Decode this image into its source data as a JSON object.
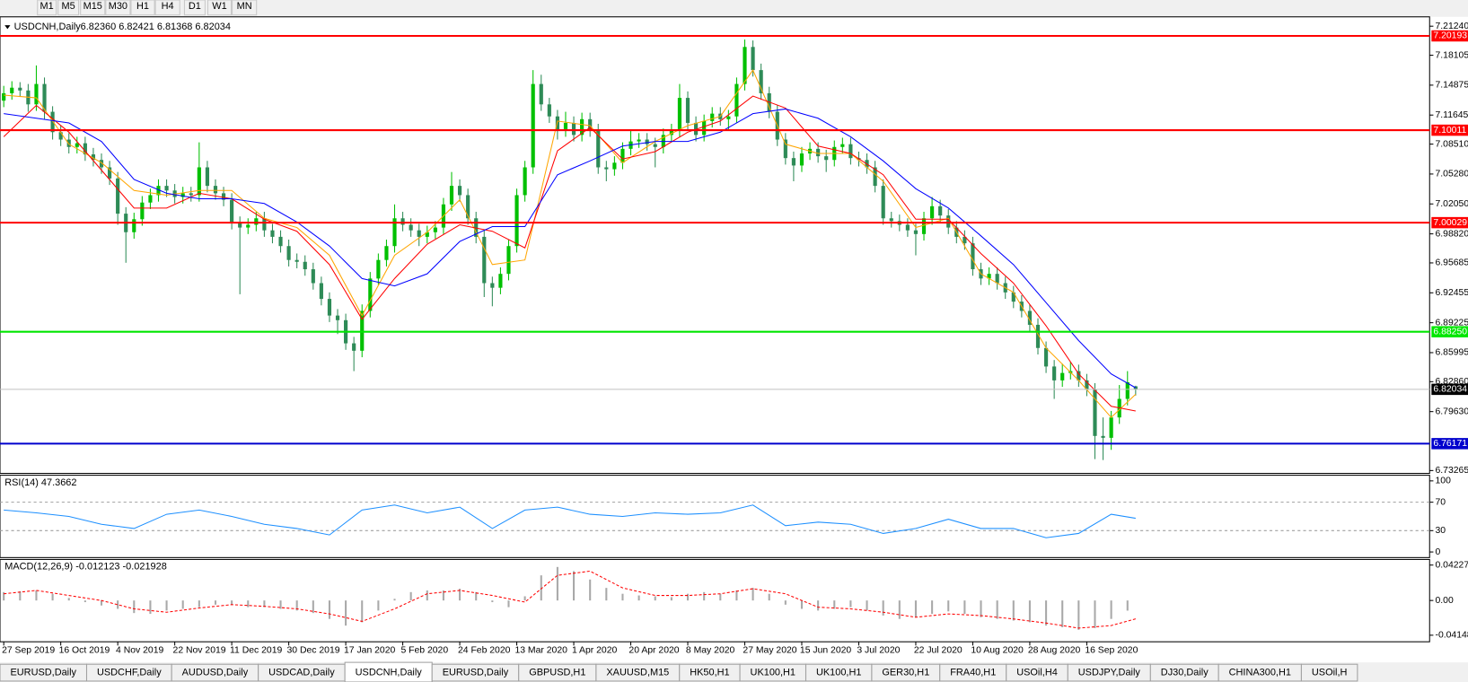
{
  "toolbar": {
    "timeframes": [
      "M1",
      "M5",
      "M15",
      "M30",
      "H1",
      "H4",
      "D1",
      "W1",
      "MN"
    ]
  },
  "tabs": [
    "EURUSD,Daily",
    "USDCHF,Daily",
    "AUDUSD,Daily",
    "USDCAD,Daily",
    "USDCNH,Daily",
    "EURUSD,Daily",
    "GBPUSD,H1",
    "XAUUSD,M15",
    "HK50,H1",
    "UK100,H1",
    "UK100,H1",
    "GER30,H1",
    "FRA40,H1",
    "USOil,H4",
    "USDJPY,Daily",
    "DJ30,Daily",
    "CHINA300,H1",
    "USOil,H"
  ],
  "active_tab": 4,
  "chart_data": [
    {
      "type": "candlestick",
      "title": "USDCNH,Daily",
      "ohlc_label": "6.82360 6.82421 6.81368 6.82034",
      "bull_color": "#00c000",
      "bear_color": "#2e8b57",
      "xlim": [
        -0.46,
        175.1
      ],
      "ylim": [
        6.7296,
        7.2225
      ],
      "xticks": [
        {
          "value": 0,
          "label": "27 Sep 2019"
        },
        {
          "value": 7,
          "label": "16 Oct 2019"
        },
        {
          "value": 14,
          "label": "4 Nov 2019"
        },
        {
          "value": 21,
          "label": "22 Nov 2019"
        },
        {
          "value": 28,
          "label": "11 Dec 2019"
        },
        {
          "value": 35,
          "label": "30 Dec 2019"
        },
        {
          "value": 42,
          "label": "17 Jan 2020"
        },
        {
          "value": 49,
          "label": "5 Feb 2020"
        },
        {
          "value": 56,
          "label": "24 Feb 2020"
        },
        {
          "value": 63,
          "label": "13 Mar 2020"
        },
        {
          "value": 70,
          "label": "1 Apr 2020"
        },
        {
          "value": 77,
          "label": "20 Apr 2020"
        },
        {
          "value": 84,
          "label": "8 May 2020"
        },
        {
          "value": 91,
          "label": "27 May 2020"
        },
        {
          "value": 98,
          "label": "15 Jun 2020"
        },
        {
          "value": 105,
          "label": "3 Jul 2020"
        },
        {
          "value": 112,
          "label": "22 Jul 2020"
        },
        {
          "value": 119,
          "label": "10 Aug 2020"
        },
        {
          "value": 126,
          "label": "28 Aug 2020"
        },
        {
          "value": 133,
          "label": "16 Sep 2020"
        }
      ],
      "yticks": [
        {
          "value": 7.2124,
          "label": "7.21240"
        },
        7.18105,
        7.14875,
        7.11645,
        {
          "value": 7.0851,
          "label": "7.08510"
        },
        {
          "value": 7.0528,
          "label": "7.05280"
        },
        {
          "value": 7.0205,
          "label": "7.02050"
        },
        {
          "value": 6.9882,
          "label": "6.98820"
        },
        6.95685,
        6.92455,
        6.89225,
        6.85995,
        {
          "value": 6.8286,
          "label": "6.82860"
        },
        {
          "value": 6.7963,
          "label": "6.79630"
        },
        6.73265
      ],
      "open": [
        7.132,
        7.14,
        7.146,
        7.143,
        7.128,
        7.15,
        7.12,
        7.098,
        7.09,
        7.082,
        7.086,
        7.074,
        7.068,
        7.06,
        7.048,
        7.01,
        6.99,
        7.004,
        7.022,
        7.03,
        7.04,
        7.035,
        7.028,
        7.032,
        7.03,
        7.06,
        7.04,
        7.032,
        7.025,
        7.0,
        6.995,
        6.998,
        7.005,
        6.992,
        6.985,
        6.975,
        6.96,
        6.958,
        6.95,
        6.935,
        6.918,
        6.9,
        6.895,
        6.87,
        6.862,
        6.905,
        6.94,
        6.96,
        6.975,
        7.005,
        6.998,
        6.992,
        6.985,
        6.99,
        6.995,
        7.02,
        7.04,
        7.03,
        7.005,
        6.985,
        6.935,
        6.93,
        6.945,
        6.975,
        7.03,
        7.06,
        7.15,
        7.128,
        7.115,
        7.1,
        7.108,
        7.095,
        7.112,
        7.1,
        7.06,
        7.058,
        7.065,
        7.08,
        7.088,
        7.09,
        7.085,
        7.082,
        7.095,
        7.1,
        7.135,
        7.108,
        7.095,
        7.11,
        7.118,
        7.112,
        7.115,
        7.15,
        7.19,
        7.165,
        7.14,
        7.12,
        7.09,
        7.07,
        7.062,
        7.075,
        7.08,
        7.072,
        7.068,
        7.082,
        7.085,
        7.07,
        7.068,
        7.06,
        7.04,
        7.005,
        7.002,
        6.998,
        6.992,
        6.988,
        7.005,
        7.018,
        7.008,
        6.995,
        6.985,
        6.978,
        6.95,
        6.94,
        6.945,
        6.935,
        6.925,
        6.915,
        6.905,
        6.89,
        6.865,
        6.845,
        6.83,
        6.838,
        6.84,
        6.83,
        6.82,
        6.77,
        6.768,
        6.79,
        6.81,
        6.8236
      ],
      "high": [
        7.148,
        7.153,
        7.152,
        7.15,
        7.17,
        7.157,
        7.126,
        7.105,
        7.097,
        7.093,
        7.093,
        7.081,
        7.075,
        7.067,
        7.055,
        7.017,
        7.011,
        7.029,
        7.037,
        7.047,
        7.047,
        7.042,
        7.039,
        7.039,
        7.087,
        7.067,
        7.047,
        7.039,
        7.032,
        7.007,
        7.005,
        7.012,
        7.012,
        6.999,
        6.992,
        6.982,
        6.967,
        6.965,
        6.957,
        6.942,
        6.925,
        6.907,
        6.902,
        6.877,
        6.912,
        6.947,
        6.967,
        6.982,
        7.02,
        7.012,
        7.005,
        6.999,
        6.997,
        7.002,
        7.027,
        7.055,
        7.047,
        7.037,
        7.012,
        6.992,
        6.942,
        6.952,
        6.982,
        7.037,
        7.067,
        7.165,
        7.16,
        7.135,
        7.122,
        7.12,
        7.115,
        7.119,
        7.119,
        7.107,
        7.067,
        7.072,
        7.087,
        7.1,
        7.097,
        7.097,
        7.092,
        7.102,
        7.107,
        7.15,
        7.142,
        7.115,
        7.117,
        7.125,
        7.125,
        7.122,
        7.157,
        7.198,
        7.197,
        7.172,
        7.147,
        7.127,
        7.097,
        7.077,
        7.082,
        7.087,
        7.087,
        7.079,
        7.089,
        7.092,
        7.092,
        7.077,
        7.075,
        7.067,
        7.047,
        7.012,
        7.009,
        7.005,
        6.999,
        7.012,
        7.028,
        7.025,
        7.015,
        7.002,
        6.992,
        6.985,
        6.957,
        6.952,
        6.952,
        6.942,
        6.932,
        6.922,
        6.912,
        6.897,
        6.872,
        6.852,
        6.848,
        6.85,
        6.847,
        6.837,
        6.827,
        6.79,
        6.797,
        6.825,
        6.84,
        6.82421
      ],
      "low": [
        7.125,
        7.133,
        7.136,
        7.12,
        7.121,
        7.112,
        7.09,
        7.083,
        7.075,
        7.075,
        7.067,
        7.061,
        7.053,
        7.041,
        6.998,
        6.957,
        6.983,
        6.997,
        7.015,
        7.023,
        7.028,
        7.021,
        7.021,
        7.023,
        7.023,
        7.033,
        7.025,
        7.018,
        6.993,
        6.923,
        6.988,
        6.991,
        6.985,
        6.978,
        6.968,
        6.953,
        6.951,
        6.943,
        6.928,
        6.911,
        6.893,
        6.88,
        6.863,
        6.84,
        6.855,
        6.898,
        6.933,
        6.953,
        6.968,
        6.991,
        6.985,
        6.975,
        6.978,
        6.983,
        6.988,
        7.013,
        7.023,
        6.998,
        6.978,
        6.92,
        6.91,
        6.923,
        6.938,
        6.968,
        7.023,
        7.053,
        7.121,
        7.108,
        7.09,
        7.093,
        7.088,
        7.088,
        7.093,
        7.053,
        7.045,
        7.051,
        7.058,
        7.073,
        7.081,
        7.078,
        7.06,
        7.075,
        7.088,
        7.093,
        7.101,
        7.088,
        7.088,
        7.103,
        7.105,
        7.1,
        7.108,
        7.143,
        7.158,
        7.133,
        7.113,
        7.083,
        7.063,
        7.045,
        7.055,
        7.068,
        7.065,
        7.055,
        7.061,
        7.075,
        7.063,
        7.061,
        7.053,
        7.033,
        6.998,
        6.995,
        6.991,
        6.985,
        6.965,
        6.981,
        6.998,
        7.001,
        6.988,
        6.978,
        6.971,
        6.943,
        6.933,
        6.933,
        6.928,
        6.918,
        6.908,
        6.898,
        6.883,
        6.858,
        6.838,
        6.81,
        6.823,
        6.831,
        6.823,
        6.813,
        6.745,
        6.744,
        6.755,
        6.783,
        6.803,
        6.81368
      ],
      "close": [
        7.14,
        7.146,
        7.143,
        7.128,
        7.15,
        7.12,
        7.098,
        7.09,
        7.082,
        7.086,
        7.074,
        7.068,
        7.06,
        7.048,
        7.01,
        6.99,
        7.004,
        7.022,
        7.03,
        7.04,
        7.035,
        7.028,
        7.032,
        7.03,
        7.06,
        7.04,
        7.032,
        7.025,
        7.0,
        6.995,
        6.998,
        7.005,
        6.992,
        6.985,
        6.975,
        6.96,
        6.958,
        6.95,
        6.935,
        6.918,
        6.9,
        6.895,
        6.87,
        6.862,
        6.905,
        6.94,
        6.96,
        6.975,
        7.005,
        6.998,
        6.992,
        6.985,
        6.99,
        6.995,
        7.02,
        7.04,
        7.03,
        7.005,
        6.985,
        6.935,
        6.93,
        6.945,
        6.975,
        7.03,
        7.06,
        7.15,
        7.128,
        7.115,
        7.1,
        7.108,
        7.095,
        7.112,
        7.1,
        7.06,
        7.058,
        7.065,
        7.08,
        7.088,
        7.09,
        7.085,
        7.082,
        7.095,
        7.1,
        7.135,
        7.108,
        7.095,
        7.11,
        7.118,
        7.112,
        7.115,
        7.15,
        7.19,
        7.165,
        7.14,
        7.12,
        7.09,
        7.07,
        7.062,
        7.075,
        7.08,
        7.072,
        7.068,
        7.082,
        7.085,
        7.07,
        7.068,
        7.06,
        7.04,
        7.005,
        7.002,
        6.998,
        6.992,
        6.988,
        7.005,
        7.018,
        7.008,
        6.995,
        6.985,
        6.978,
        6.95,
        6.94,
        6.945,
        6.935,
        6.925,
        6.915,
        6.905,
        6.89,
        6.865,
        6.845,
        6.83,
        6.838,
        6.84,
        6.83,
        6.82,
        6.77,
        6.768,
        6.79,
        6.81,
        6.828,
        6.82034
      ],
      "ma_x": [
        0,
        4,
        8,
        12,
        16,
        20,
        24,
        28,
        32,
        36,
        40,
        44,
        48,
        52,
        56,
        60,
        64,
        68,
        72,
        76,
        80,
        84,
        88,
        92,
        96,
        100,
        104,
        108,
        112,
        116,
        120,
        124,
        128,
        132,
        136,
        139
      ],
      "ma_lines": [
        {
          "color": "#ffa500",
          "values": [
            7.138,
            7.135,
            7.085,
            7.065,
            7.035,
            7.03,
            7.035,
            7.035,
            7.005,
            6.995,
            6.965,
            6.9,
            6.965,
            6.99,
            7.025,
            6.955,
            6.96,
            7.11,
            7.105,
            7.065,
            7.088,
            7.105,
            7.115,
            7.165,
            7.085,
            7.075,
            7.075,
            7.045,
            6.995,
            7.005,
            6.945,
            6.925,
            6.865,
            6.83,
            6.79,
            6.815
          ]
        },
        {
          "color": "#ff0000",
          "values": [
            7.093,
            7.127,
            7.098,
            7.057,
            7.016,
            7.016,
            7.032,
            7.026,
            7.004,
            6.991,
            6.955,
            6.896,
            6.94,
            6.977,
            6.998,
            6.991,
            6.973,
            7.078,
            7.103,
            7.069,
            7.077,
            7.098,
            7.11,
            7.137,
            7.124,
            7.083,
            7.075,
            7.052,
            7.004,
            7.004,
            6.967,
            6.935,
            6.889,
            6.837,
            6.802,
            6.797
          ]
        },
        {
          "color": "#0000ff",
          "values": [
            7.118,
            7.113,
            7.108,
            7.088,
            7.047,
            7.032,
            7.026,
            7.026,
            7.021,
            7.001,
            6.975,
            6.94,
            6.932,
            6.945,
            6.98,
            6.996,
            6.996,
            7.052,
            7.067,
            7.083,
            7.088,
            7.088,
            7.098,
            7.118,
            7.123,
            7.113,
            7.093,
            7.067,
            7.037,
            7.016,
            6.986,
            6.955,
            6.914,
            6.873,
            6.837,
            6.822
          ]
        }
      ],
      "levels": [
        {
          "value": 7.20193,
          "color": "#ff0000"
        },
        {
          "value": 7.10011,
          "color": "#ff0000"
        },
        {
          "value": 7.00029,
          "color": "#ff0000"
        },
        {
          "value": 6.8825,
          "label": "6.88250",
          "color": "#00e600"
        },
        {
          "value": 6.76171,
          "color": "#0000cd"
        }
      ],
      "current_price_color": "#c0c0c0"
    },
    {
      "type": "line",
      "title": "RSI(14) 47.3662",
      "color": "#1e90ff",
      "ylim": [
        -7.9,
        107.9
      ],
      "yticks": [
        100,
        70,
        30,
        0
      ],
      "levels": [
        70,
        30
      ],
      "x": [
        0,
        4,
        8,
        12,
        16,
        20,
        24,
        28,
        32,
        36,
        40,
        44,
        48,
        52,
        56,
        60,
        64,
        68,
        72,
        76,
        80,
        84,
        88,
        92,
        96,
        100,
        104,
        108,
        112,
        116,
        120,
        124,
        128,
        132,
        136,
        139
      ],
      "values": [
        59,
        55,
        50,
        39,
        33,
        53,
        59,
        50,
        39,
        33,
        24,
        59,
        66,
        55,
        63,
        33,
        59,
        63,
        53,
        50,
        55,
        53,
        55,
        66,
        37,
        42,
        39,
        26,
        33,
        46,
        33,
        33,
        20,
        26,
        53,
        47.3662
      ]
    },
    {
      "type": "macd",
      "title": "MACD(12,26,9) -0.012123 -0.021928",
      "ylim": [
        -0.0493,
        0.04898
      ],
      "yticks": [
        0.042275,
        {
          "value": 0,
          "label": "0.00"
        },
        -0.04148
      ],
      "histogram": {
        "color": "#a9a9a9",
        "x": [
          0,
          2,
          4,
          6,
          8,
          10,
          12,
          14,
          16,
          18,
          20,
          22,
          24,
          26,
          28,
          30,
          32,
          34,
          36,
          38,
          40,
          42,
          44,
          46,
          48,
          50,
          52,
          54,
          56,
          58,
          60,
          62,
          64,
          66,
          68,
          70,
          72,
          74,
          76,
          78,
          80,
          82,
          84,
          86,
          88,
          90,
          92,
          94,
          96,
          98,
          100,
          102,
          104,
          106,
          108,
          110,
          112,
          114,
          116,
          118,
          120,
          122,
          124,
          126,
          128,
          130,
          132,
          134,
          136,
          138
        ],
        "values": [
          0.01,
          0.011,
          0.012,
          0.008,
          0.003,
          -0.002,
          -0.006,
          -0.01,
          -0.015,
          -0.016,
          -0.012,
          -0.01,
          -0.008,
          -0.005,
          -0.005,
          -0.008,
          -0.008,
          -0.01,
          -0.012,
          -0.015,
          -0.022,
          -0.03,
          -0.026,
          -0.012,
          0.002,
          0.01,
          0.012,
          0.012,
          0.014,
          0.01,
          -0.002,
          -0.008,
          0.005,
          0.03,
          0.04,
          0.035,
          0.025,
          0.015,
          0.008,
          0.006,
          0.005,
          0.004,
          0.008,
          0.01,
          0.008,
          0.012,
          0.015,
          0.008,
          -0.005,
          -0.01,
          -0.012,
          -0.01,
          -0.008,
          -0.012,
          -0.018,
          -0.022,
          -0.02,
          -0.016,
          -0.013,
          -0.016,
          -0.02,
          -0.022,
          -0.024,
          -0.026,
          -0.03,
          -0.032,
          -0.035,
          -0.033,
          -0.022,
          -0.012123
        ]
      },
      "signal": {
        "color": "#ff0000",
        "x": [
          0,
          4,
          8,
          12,
          16,
          20,
          24,
          28,
          32,
          36,
          40,
          44,
          48,
          52,
          56,
          60,
          64,
          68,
          72,
          76,
          80,
          84,
          88,
          92,
          96,
          100,
          104,
          108,
          112,
          116,
          120,
          124,
          128,
          132,
          136,
          139
        ],
        "values": [
          0.008,
          0.012,
          0.006,
          0,
          -0.01,
          -0.014,
          -0.009,
          -0.005,
          -0.007,
          -0.01,
          -0.016,
          -0.025,
          -0.01,
          0.008,
          0.012,
          0.006,
          -0.002,
          0.03,
          0.035,
          0.015,
          0.006,
          0.006,
          0.008,
          0.014,
          0.008,
          -0.008,
          -0.01,
          -0.014,
          -0.02,
          -0.016,
          -0.018,
          -0.022,
          -0.027,
          -0.033,
          -0.03,
          -0.021928
        ]
      }
    }
  ]
}
